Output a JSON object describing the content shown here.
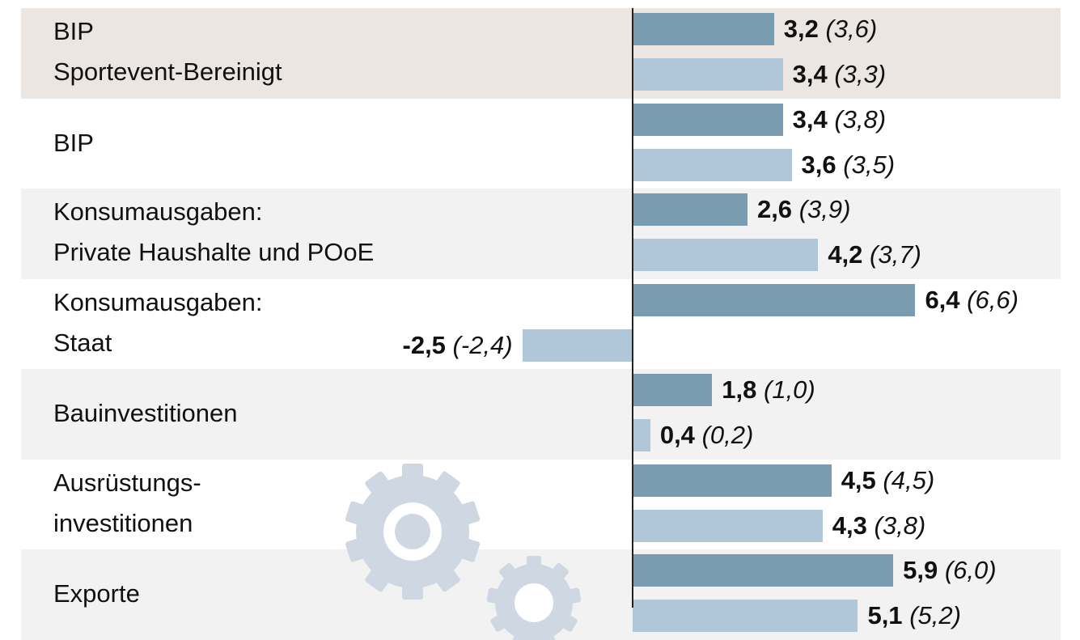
{
  "colors": {
    "series_a": "#7a9cb0",
    "series_b": "#b0c7da",
    "band_highlight": "#ebe6e2",
    "band_light": "#f2f2f2",
    "band_white": "#ffffff",
    "gear": "#cfd8e2"
  },
  "chart_data": {
    "type": "bar",
    "orientation": "horizontal",
    "categories": [
      {
        "line1": "BIP",
        "line2": "Sportevent-Bereinigt",
        "bold_line1": true
      },
      {
        "line1": "BIP",
        "line2": "",
        "bold_line1": true
      },
      {
        "line1": "Konsumausgaben:",
        "line2": "Private Haushalte und POoE",
        "bold_line1": false
      },
      {
        "line1": "Konsumausgaben:",
        "line2": "Staat",
        "bold_line1": false
      },
      {
        "line1": "Bauinvestitionen",
        "line2": "",
        "bold_line1": false
      },
      {
        "line1": "Ausrüstungs-",
        "line2": "investitionen",
        "bold_line1": false
      },
      {
        "line1": "Exporte",
        "line2": "",
        "bold_line1": false
      }
    ],
    "series": [
      {
        "values": [
          3.2,
          3.4,
          2.6,
          6.4,
          1.8,
          4.5,
          5.9
        ],
        "labels": [
          "3,2",
          "3,4",
          "2,6",
          "6,4",
          "1,8",
          "4,5",
          "5,9"
        ],
        "prev_labels": [
          "(3,6)",
          "(3,8)",
          "(3,9)",
          "(6,6)",
          "(1,0)",
          "(4,5)",
          "(6,0)"
        ]
      },
      {
        "values": [
          3.4,
          3.6,
          4.2,
          -2.5,
          0.4,
          4.3,
          5.1
        ],
        "labels": [
          "3,4",
          "3,6",
          "4,2",
          "-2,5",
          "0,4",
          "4,3",
          "5,1"
        ],
        "prev_labels": [
          "(3,3)",
          "(3,5)",
          "(3,7)",
          "(-2,4)",
          "(0,2)",
          "(3,8)",
          "(5,2)"
        ]
      }
    ],
    "grid": false,
    "legend": "none"
  }
}
